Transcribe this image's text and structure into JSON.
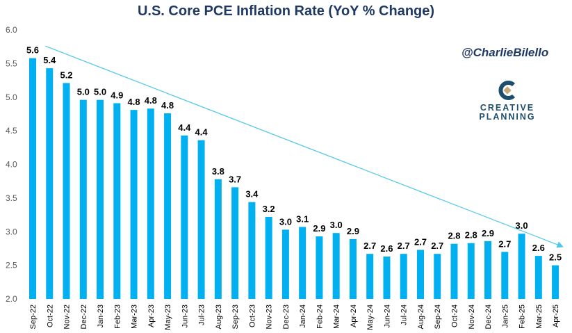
{
  "chart_data": {
    "type": "bar",
    "title": "U.S. Core PCE Inflation Rate (YoY % Change)",
    "xlabel": "",
    "ylabel": "",
    "ylim": [
      2.0,
      6.0
    ],
    "yticks": [
      "2.0",
      "2.5",
      "3.0",
      "3.5",
      "4.0",
      "4.5",
      "5.0",
      "5.5",
      "6.0"
    ],
    "grid": false,
    "bar_color": "#00b0f0",
    "categories": [
      "Sep-22",
      "Oct-22",
      "Nov-22",
      "Dec-22",
      "Jan-23",
      "Feb-23",
      "Mar-23",
      "Apr-23",
      "May-23",
      "Jun-23",
      "Jul-23",
      "Aug-23",
      "Sep-23",
      "Oct-23",
      "Nov-23",
      "Dec-23",
      "Jan-24",
      "Feb-24",
      "Mar-24",
      "Apr-24",
      "May-24",
      "Jun-24",
      "Jul-24",
      "Aug-24",
      "Sep-24",
      "Oct-24",
      "Nov-24",
      "Dec-24",
      "Jan-25",
      "Feb-25",
      "Mar-25",
      "Apr-25"
    ],
    "values": [
      5.58,
      5.43,
      5.21,
      4.96,
      4.96,
      4.91,
      4.81,
      4.83,
      4.76,
      4.43,
      4.36,
      3.78,
      3.66,
      3.44,
      3.22,
      3.03,
      3.07,
      2.93,
      2.98,
      2.89,
      2.67,
      2.63,
      2.67,
      2.73,
      2.67,
      2.82,
      2.83,
      2.86,
      2.7,
      2.97,
      2.64,
      2.5
    ],
    "data_labels": [
      "5.6",
      "5.4",
      "5.2",
      "5.0",
      "5.0",
      "4.9",
      "4.8",
      "4.8",
      "4.8",
      "4.4",
      "4.4",
      "3.8",
      "3.7",
      "3.4",
      "3.2",
      "3.0",
      "3.1",
      "2.9",
      "3.0",
      "2.9",
      "2.7",
      "2.6",
      "2.7",
      "2.7",
      "2.7",
      "2.8",
      "2.8",
      "2.9",
      "2.7",
      "3.0",
      "2.6",
      "2.5"
    ],
    "trendline": {
      "start": [
        0.75,
        5.76
      ],
      "end": [
        31.4,
        2.78
      ],
      "color": "#4fc8ea",
      "arrow": true
    }
  },
  "annotations": {
    "handle": "@CharlieBilello",
    "logo_line1": "CREATIVE",
    "logo_line2": "PLANNING"
  }
}
